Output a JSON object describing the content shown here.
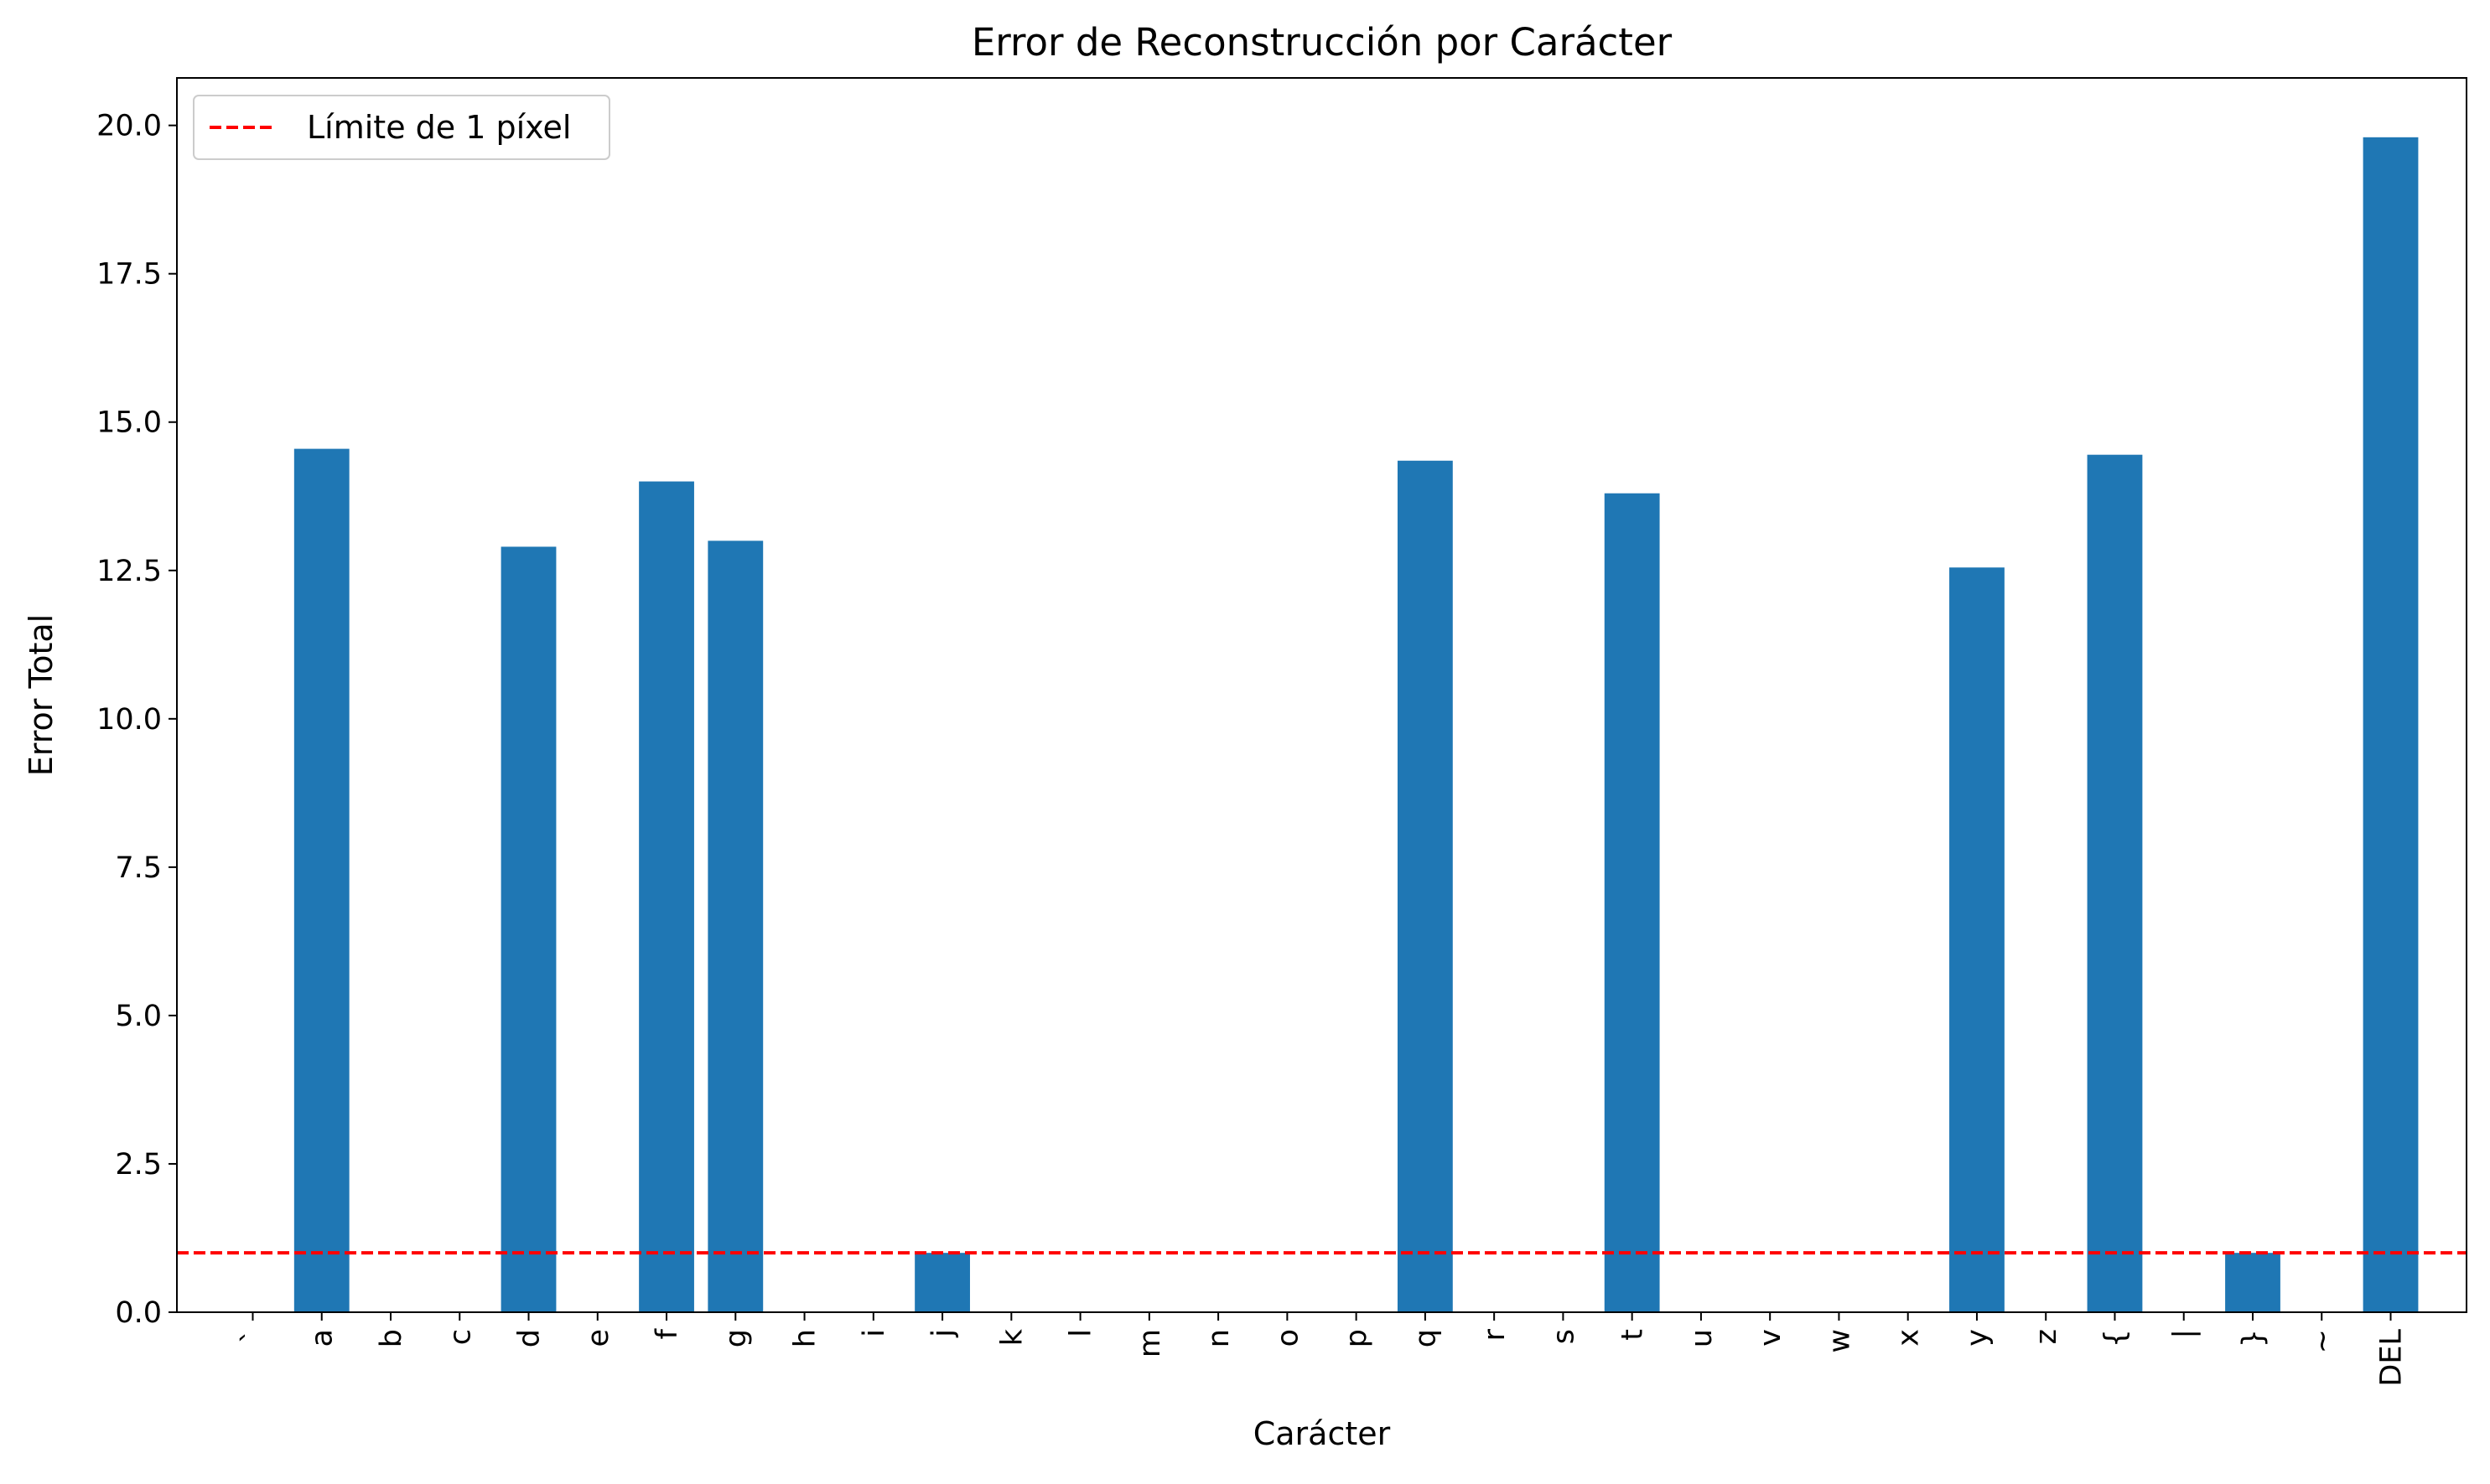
{
  "chart_data": {
    "type": "bar",
    "title": "Error de Reconstrucción por Carácter",
    "xlabel": "Carácter",
    "ylabel": "Error Total",
    "ylim": [
      0,
      20.8
    ],
    "yticks": [
      "0.0",
      "2.5",
      "5.0",
      "7.5",
      "10.0",
      "12.5",
      "15.0",
      "17.5",
      "20.0"
    ],
    "categories": [
      "`",
      "a",
      "b",
      "c",
      "d",
      "e",
      "f",
      "g",
      "h",
      "i",
      "j",
      "k",
      "l",
      "m",
      "n",
      "o",
      "p",
      "q",
      "r",
      "s",
      "t",
      "u",
      "v",
      "w",
      "x",
      "y",
      "z",
      "{",
      "|",
      "}",
      "~",
      "DEL"
    ],
    "values": [
      0,
      14.55,
      0,
      0,
      12.9,
      0,
      14.0,
      13.0,
      0,
      0,
      1.0,
      0,
      0,
      0,
      0,
      0,
      0,
      14.35,
      0,
      0,
      13.8,
      0,
      0,
      0,
      0,
      12.55,
      0,
      14.45,
      0,
      1.0,
      0,
      19.8
    ],
    "bar_color": "#1f77b4",
    "reference_line": {
      "value": 1.0,
      "label": "Límite de 1 píxel",
      "color": "#ff0000",
      "style": "dashed"
    },
    "legend_position": "top-left",
    "grid": false
  }
}
